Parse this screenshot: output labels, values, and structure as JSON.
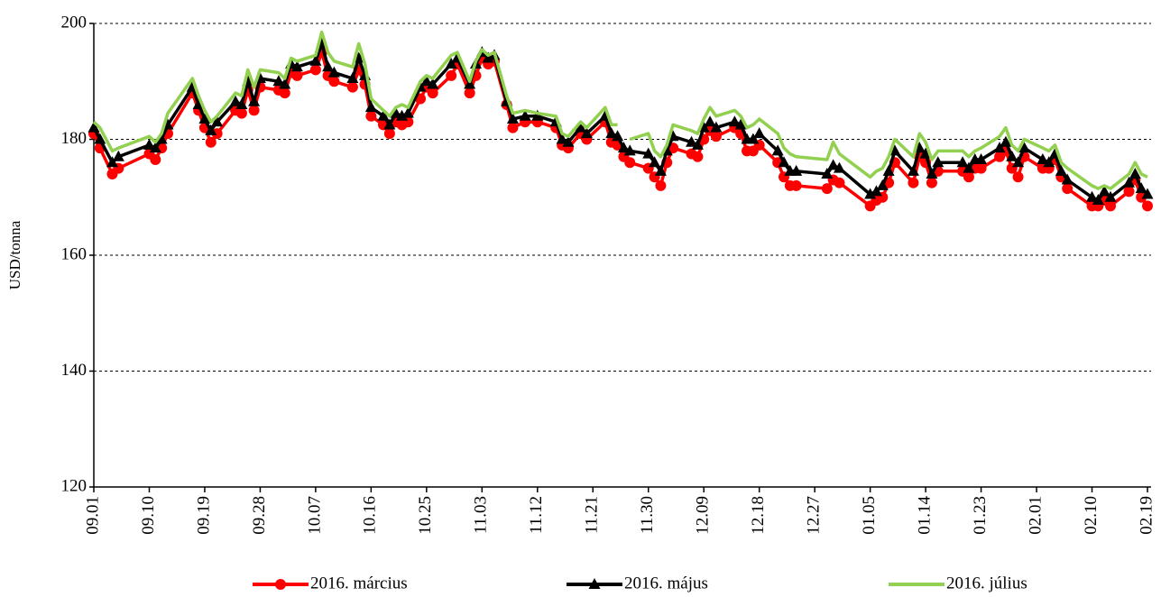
{
  "chart_data": {
    "type": "line",
    "y_label": "USD/tonna",
    "x": [
      0,
      1,
      3,
      4,
      9,
      10,
      11,
      12,
      16,
      17,
      18,
      19,
      20,
      23,
      24,
      25,
      26,
      27,
      30,
      31,
      32,
      33,
      36,
      37,
      38,
      39,
      42,
      43,
      44,
      45,
      47,
      48,
      49,
      50,
      51,
      53,
      54,
      55,
      58,
      59,
      61,
      62,
      63,
      64,
      65,
      67,
      68,
      70,
      72,
      75,
      76,
      77,
      79,
      80,
      83,
      84,
      85,
      86,
      87,
      90,
      91,
      92,
      93,
      94,
      97,
      98,
      99,
      100,
      101,
      104,
      105,
      106,
      107,
      108,
      111,
      112,
      113,
      114,
      119,
      120,
      121,
      126,
      127,
      128,
      129,
      130,
      133,
      134,
      135,
      136,
      137,
      141,
      142,
      143,
      144,
      147,
      148,
      149,
      150,
      151,
      154,
      155,
      156,
      157,
      158,
      162,
      163,
      164,
      165,
      168,
      169,
      170,
      171
    ],
    "series": [
      {
        "name": "2016. március",
        "color": "#ff0000",
        "marker": "circle",
        "values": [
          181,
          178.5,
          174,
          175,
          177.5,
          176.5,
          178.5,
          181,
          188,
          185,
          182,
          179.5,
          181,
          185,
          184.5,
          188.5,
          185,
          189,
          188.5,
          188,
          191.5,
          191,
          192,
          195,
          191,
          190,
          189,
          192,
          189.5,
          184,
          182.5,
          181,
          183,
          182.5,
          183,
          187,
          189,
          188,
          191,
          193,
          188,
          191,
          194,
          193,
          193.5,
          186,
          182,
          183,
          183,
          182,
          179,
          178.5,
          181,
          180,
          183,
          179.5,
          179,
          177,
          176,
          175,
          173.5,
          172,
          176,
          178.5,
          177.5,
          177,
          180,
          181.5,
          180.5,
          182,
          181,
          178,
          178,
          179,
          176,
          173.5,
          172,
          172,
          171.5,
          173,
          172.5,
          168.5,
          169.5,
          170,
          172.5,
          176,
          172.5,
          177,
          176,
          172.5,
          174.5,
          174.5,
          173.5,
          175,
          175,
          177,
          178,
          175,
          173.5,
          177,
          175,
          175,
          176.5,
          173.5,
          171.5,
          168.5,
          168.5,
          169.5,
          168.5,
          171,
          173,
          170,
          168.5
        ]
      },
      {
        "name": "2016. május",
        "color": "#000000",
        "marker": "triangle",
        "values": [
          182,
          180,
          176,
          177,
          179,
          178.5,
          180,
          182.5,
          189,
          186,
          183.5,
          181.5,
          183,
          186.5,
          186,
          190,
          186.5,
          190.5,
          190,
          189.5,
          193,
          192.5,
          193.5,
          196.5,
          192.5,
          191.5,
          190.5,
          194,
          191,
          185.5,
          184,
          182.5,
          184.5,
          184,
          184.5,
          189,
          190,
          189.5,
          193,
          194,
          189.5,
          193,
          195,
          194,
          194.5,
          186.5,
          183.5,
          184,
          184,
          183,
          180,
          179.5,
          182,
          181,
          184,
          181,
          180.5,
          178.5,
          178,
          177.5,
          176,
          174.5,
          178,
          180.5,
          179.5,
          179,
          182,
          183,
          182,
          183,
          182.5,
          180,
          180,
          181,
          178,
          176,
          174.5,
          174.5,
          174,
          175.5,
          175,
          170.5,
          171,
          172,
          174.5,
          178,
          174.5,
          178.5,
          177.5,
          174,
          176,
          176,
          175,
          176.5,
          176.5,
          178.5,
          179.5,
          177,
          176,
          178.5,
          176.5,
          176,
          177.5,
          174.5,
          173,
          170,
          169.5,
          171,
          170,
          172.5,
          174,
          171.5,
          170.5
        ]
      },
      {
        "name": "2016. július",
        "color": "#92d050",
        "marker": "none",
        "values": [
          183,
          182,
          178,
          178.5,
          180.5,
          179.5,
          181,
          184.5,
          190.5,
          187.5,
          185,
          183,
          184,
          188,
          187.5,
          192,
          189,
          192,
          191.5,
          190.5,
          194,
          193.5,
          194.5,
          198.5,
          195,
          193.5,
          192.5,
          196.5,
          193,
          187,
          185,
          184,
          185.5,
          186,
          185.5,
          190,
          191,
          190.5,
          194.5,
          195,
          190,
          193.5,
          195.5,
          194.5,
          195,
          187.5,
          184.5,
          185,
          184.5,
          184,
          181,
          180.5,
          183,
          182,
          185.5,
          182.5,
          182.5,
          null,
          180,
          181,
          178,
          177,
          179,
          182.5,
          181.5,
          181,
          183.5,
          185.5,
          184,
          185,
          184,
          182,
          182.5,
          183.5,
          181,
          178.5,
          177.5,
          177,
          176.5,
          179.5,
          177.5,
          173.5,
          174.5,
          175,
          177,
          180,
          177,
          181,
          179.5,
          176.5,
          178,
          178,
          177,
          178,
          178.5,
          180.5,
          182,
          179,
          178,
          180,
          178.5,
          178,
          179,
          176,
          175,
          172,
          171.5,
          172,
          171.5,
          174,
          176,
          174,
          173.5
        ]
      }
    ],
    "xlim": [
      0,
      171
    ],
    "xticks": [
      {
        "value": 0,
        "label": "09.01"
      },
      {
        "value": 9,
        "label": "09.10"
      },
      {
        "value": 18,
        "label": "09.19"
      },
      {
        "value": 27,
        "label": "09.28"
      },
      {
        "value": 36,
        "label": "10.07"
      },
      {
        "value": 45,
        "label": "10.16"
      },
      {
        "value": 54,
        "label": "10.25"
      },
      {
        "value": 63,
        "label": "11.03"
      },
      {
        "value": 72,
        "label": "11.12"
      },
      {
        "value": 81,
        "label": "11.21"
      },
      {
        "value": 90,
        "label": "11.30"
      },
      {
        "value": 99,
        "label": "12.09"
      },
      {
        "value": 108,
        "label": "12.18"
      },
      {
        "value": 117,
        "label": "12.27"
      },
      {
        "value": 126,
        "label": "01.05"
      },
      {
        "value": 135,
        "label": "01.14"
      },
      {
        "value": 144,
        "label": "01.23"
      },
      {
        "value": 153,
        "label": "02.01"
      },
      {
        "value": 162,
        "label": "02.10"
      },
      {
        "value": 171,
        "label": "02.19"
      }
    ],
    "ylim": [
      120,
      200
    ],
    "yticks": [
      120,
      140,
      160,
      180,
      200
    ],
    "grid": true,
    "legend": "bottom"
  }
}
